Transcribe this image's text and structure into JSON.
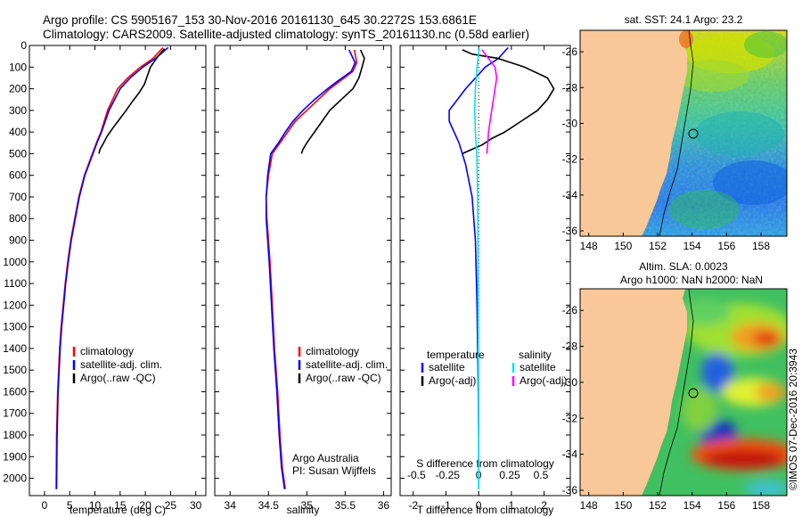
{
  "header": {
    "line1": "Argo profile: CS 5905167_153 30-Nov-2016 20161130_645 30.2272S 153.6861E",
    "line2": "Climatology: CARS2009. Satellite-adjusted climatology: synTS_20161130.nc (0.58d earlier)"
  },
  "colors": {
    "climatology": "#ff0000",
    "satellite": "#0000ff",
    "argo": "#000000",
    "salinity_satellite": "#00e5ee",
    "salinity_argo": "#ff00ff",
    "land": "#f8c898"
  },
  "chart_data": [
    {
      "type": "line",
      "name": "temperature-profile",
      "xlabel": "temperature (deg C)",
      "ylabel": "",
      "xlim": [
        -3,
        32
      ],
      "ylim": [
        2080,
        0
      ],
      "xticks": [
        0,
        5,
        10,
        15,
        20,
        25,
        30
      ],
      "yticks": [
        0,
        100,
        200,
        300,
        400,
        500,
        600,
        700,
        800,
        900,
        1000,
        1100,
        1200,
        1300,
        1400,
        1500,
        1600,
        1700,
        1800,
        1900,
        2000
      ],
      "legend": [
        "climatology",
        "satellite-adj. clim.",
        "Argo(..raw -QC)"
      ],
      "legend_position": "lower-center",
      "series": [
        {
          "name": "climatology",
          "x": [
            23.5,
            21.5,
            19,
            16.5,
            14.5,
            12.5,
            11.2,
            10.3,
            9.5,
            8.7,
            7.9,
            6.8,
            6.0,
            5.2,
            4.6,
            4.1,
            3.7,
            3.3,
            3.0,
            2.8,
            2.6,
            2.4,
            2.3
          ],
          "y": [
            10,
            60,
            100,
            150,
            200,
            300,
            400,
            450,
            500,
            550,
            600,
            700,
            800,
            900,
            1000,
            1100,
            1200,
            1300,
            1400,
            1500,
            1600,
            1800,
            2050
          ]
        },
        {
          "name": "satellite-adj. clim.",
          "x": [
            24.5,
            22,
            19.5,
            17,
            15,
            12.8,
            11.3,
            10.4,
            9.6,
            8.8,
            8.0,
            6.9,
            6.1,
            5.3,
            4.7,
            4.2,
            3.8,
            3.4,
            3.1,
            2.9,
            2.7,
            2.5,
            2.4
          ],
          "y": [
            10,
            60,
            100,
            150,
            200,
            300,
            400,
            450,
            500,
            550,
            600,
            700,
            800,
            900,
            1000,
            1100,
            1200,
            1300,
            1400,
            1500,
            1600,
            1800,
            2050
          ]
        },
        {
          "name": "Argo(..raw -QC)",
          "x": [
            23.8,
            22.5,
            21,
            20.4,
            19.8,
            18.7,
            17.4,
            16.2,
            14.9,
            13.6,
            12.4,
            11.5,
            11.0,
            10.8
          ],
          "y": [
            15,
            50,
            100,
            140,
            180,
            220,
            260,
            300,
            340,
            380,
            420,
            460,
            480,
            500
          ]
        }
      ]
    },
    {
      "type": "line",
      "name": "salinity-profile",
      "xlabel": "salinity",
      "ylabel": "",
      "xlim": [
        33.8,
        36.1
      ],
      "ylim": [
        2080,
        0
      ],
      "xticks": [
        34,
        34.5,
        35,
        35.5,
        36
      ],
      "legend": [
        "climatology",
        "satellite-adj. clim.",
        "Argo(..raw -QC)"
      ],
      "legend_position": "lower-center",
      "annotations": [
        "Argo Australia",
        "PI: Susan Wijffels"
      ],
      "series": [
        {
          "name": "climatology",
          "x": [
            35.62,
            35.65,
            35.6,
            35.45,
            35.3,
            35.15,
            35.0,
            34.85,
            34.75,
            34.65,
            34.55,
            34.5,
            34.47,
            34.48,
            34.5,
            34.52,
            34.55,
            34.58,
            34.62,
            34.65,
            34.68,
            34.72
          ],
          "y": [
            20,
            80,
            120,
            160,
            200,
            250,
            300,
            350,
            400,
            450,
            500,
            600,
            700,
            800,
            900,
            1000,
            1200,
            1400,
            1600,
            1800,
            1950,
            2050
          ]
        },
        {
          "name": "satellite-adj. clim.",
          "x": [
            35.55,
            35.63,
            35.58,
            35.42,
            35.27,
            35.1,
            34.95,
            34.82,
            34.72,
            34.63,
            34.53,
            34.49,
            34.47,
            34.47,
            34.49,
            34.51,
            34.54,
            34.57,
            34.61,
            34.64,
            34.67,
            34.71
          ],
          "y": [
            20,
            80,
            120,
            160,
            200,
            250,
            300,
            350,
            400,
            450,
            500,
            600,
            700,
            800,
            900,
            1000,
            1200,
            1400,
            1600,
            1800,
            1950,
            2050
          ]
        },
        {
          "name": "Argo(..raw -QC)",
          "x": [
            35.7,
            35.75,
            35.72,
            35.68,
            35.6,
            35.45,
            35.3,
            35.2,
            35.1,
            35.0,
            34.95,
            34.93
          ],
          "y": [
            20,
            60,
            100,
            150,
            200,
            250,
            300,
            350,
            400,
            450,
            480,
            500
          ]
        }
      ]
    },
    {
      "type": "line",
      "name": "difference-profile",
      "xlabel": "T difference from climatology",
      "xlabel2": "S difference from climatology",
      "xlim": [
        -2.4,
        2.8
      ],
      "ylim": [
        2080,
        0
      ],
      "xticks": [
        -2,
        -1,
        0,
        1,
        2
      ],
      "xticks2": [
        "-0.5",
        "-0.25",
        "0",
        "0.25",
        "0.5"
      ],
      "legend_temperature_title": "temperature",
      "legend_salinity_title": "salinity",
      "legend": [
        "satellite",
        "Argo(-adj)",
        "satellite",
        "Argo(-adj)"
      ],
      "legend_position": "lower-center",
      "series": [
        {
          "name": "temperature satellite",
          "x": [
            0.9,
            0.6,
            0.2,
            -0.4,
            -0.9,
            -0.9,
            -0.6,
            -0.4,
            -0.2,
            -0.1,
            -0.05,
            -0.02,
            0,
            0
          ],
          "y": [
            10,
            60,
            100,
            200,
            300,
            350,
            450,
            550,
            700,
            900,
            1200,
            1500,
            1800,
            2050
          ]
        },
        {
          "name": "temperature Argo(-adj)",
          "x": [
            -0.5,
            -0.2,
            0.6,
            1.4,
            2.1,
            2.3,
            2.1,
            1.8,
            1.3,
            0.8,
            0.4,
            0.1,
            -0.2,
            -0.5
          ],
          "y": [
            20,
            40,
            60,
            100,
            150,
            200,
            250,
            300,
            350,
            400,
            430,
            460,
            480,
            500
          ]
        },
        {
          "name": "salinity satellite",
          "x": [
            0.02,
            -0.02,
            -0.05,
            -0.1,
            -0.12,
            -0.1,
            -0.06,
            -0.03,
            -0.02,
            -0.01,
            0,
            0
          ],
          "y": [
            10,
            60,
            100,
            200,
            300,
            400,
            500,
            700,
            1000,
            1400,
            1800,
            2050
          ]
        },
        {
          "name": "salinity Argo(-adj)",
          "x": [
            0.1,
            0.3,
            0.5,
            0.55,
            0.5,
            0.45,
            0.4,
            0.35,
            0.3,
            0.28,
            0.25
          ],
          "y": [
            20,
            60,
            100,
            150,
            200,
            250,
            300,
            350,
            400,
            450,
            500
          ]
        }
      ]
    },
    {
      "type": "heatmap",
      "name": "sst-map",
      "title": "sat. SST: 24.1  Argo: 23.2",
      "xlim": [
        147.5,
        159.5
      ],
      "ylim": [
        -36.3,
        -24.8
      ],
      "xticks": [
        148,
        150,
        152,
        154,
        156,
        158
      ],
      "yticks": [
        -26,
        -28,
        -30,
        -32,
        -34,
        -36
      ],
      "argo_position": [
        153.69,
        -30.23
      ]
    },
    {
      "type": "heatmap",
      "name": "sla-map",
      "title": "Altim. SLA: 0.0023",
      "subtitle": "Argo h1000: NaN h2000: NaN",
      "xlim": [
        147.5,
        159.5
      ],
      "ylim": [
        -36.3,
        -24.8
      ],
      "xticks": [
        148,
        150,
        152,
        154,
        156,
        158
      ],
      "yticks": [
        -26,
        -28,
        -30,
        -32,
        -34,
        -36
      ],
      "argo_position": [
        153.69,
        -30.23
      ]
    }
  ],
  "footer": {
    "stamp": "©IMOS 07-Dec-2016 20:3943"
  }
}
